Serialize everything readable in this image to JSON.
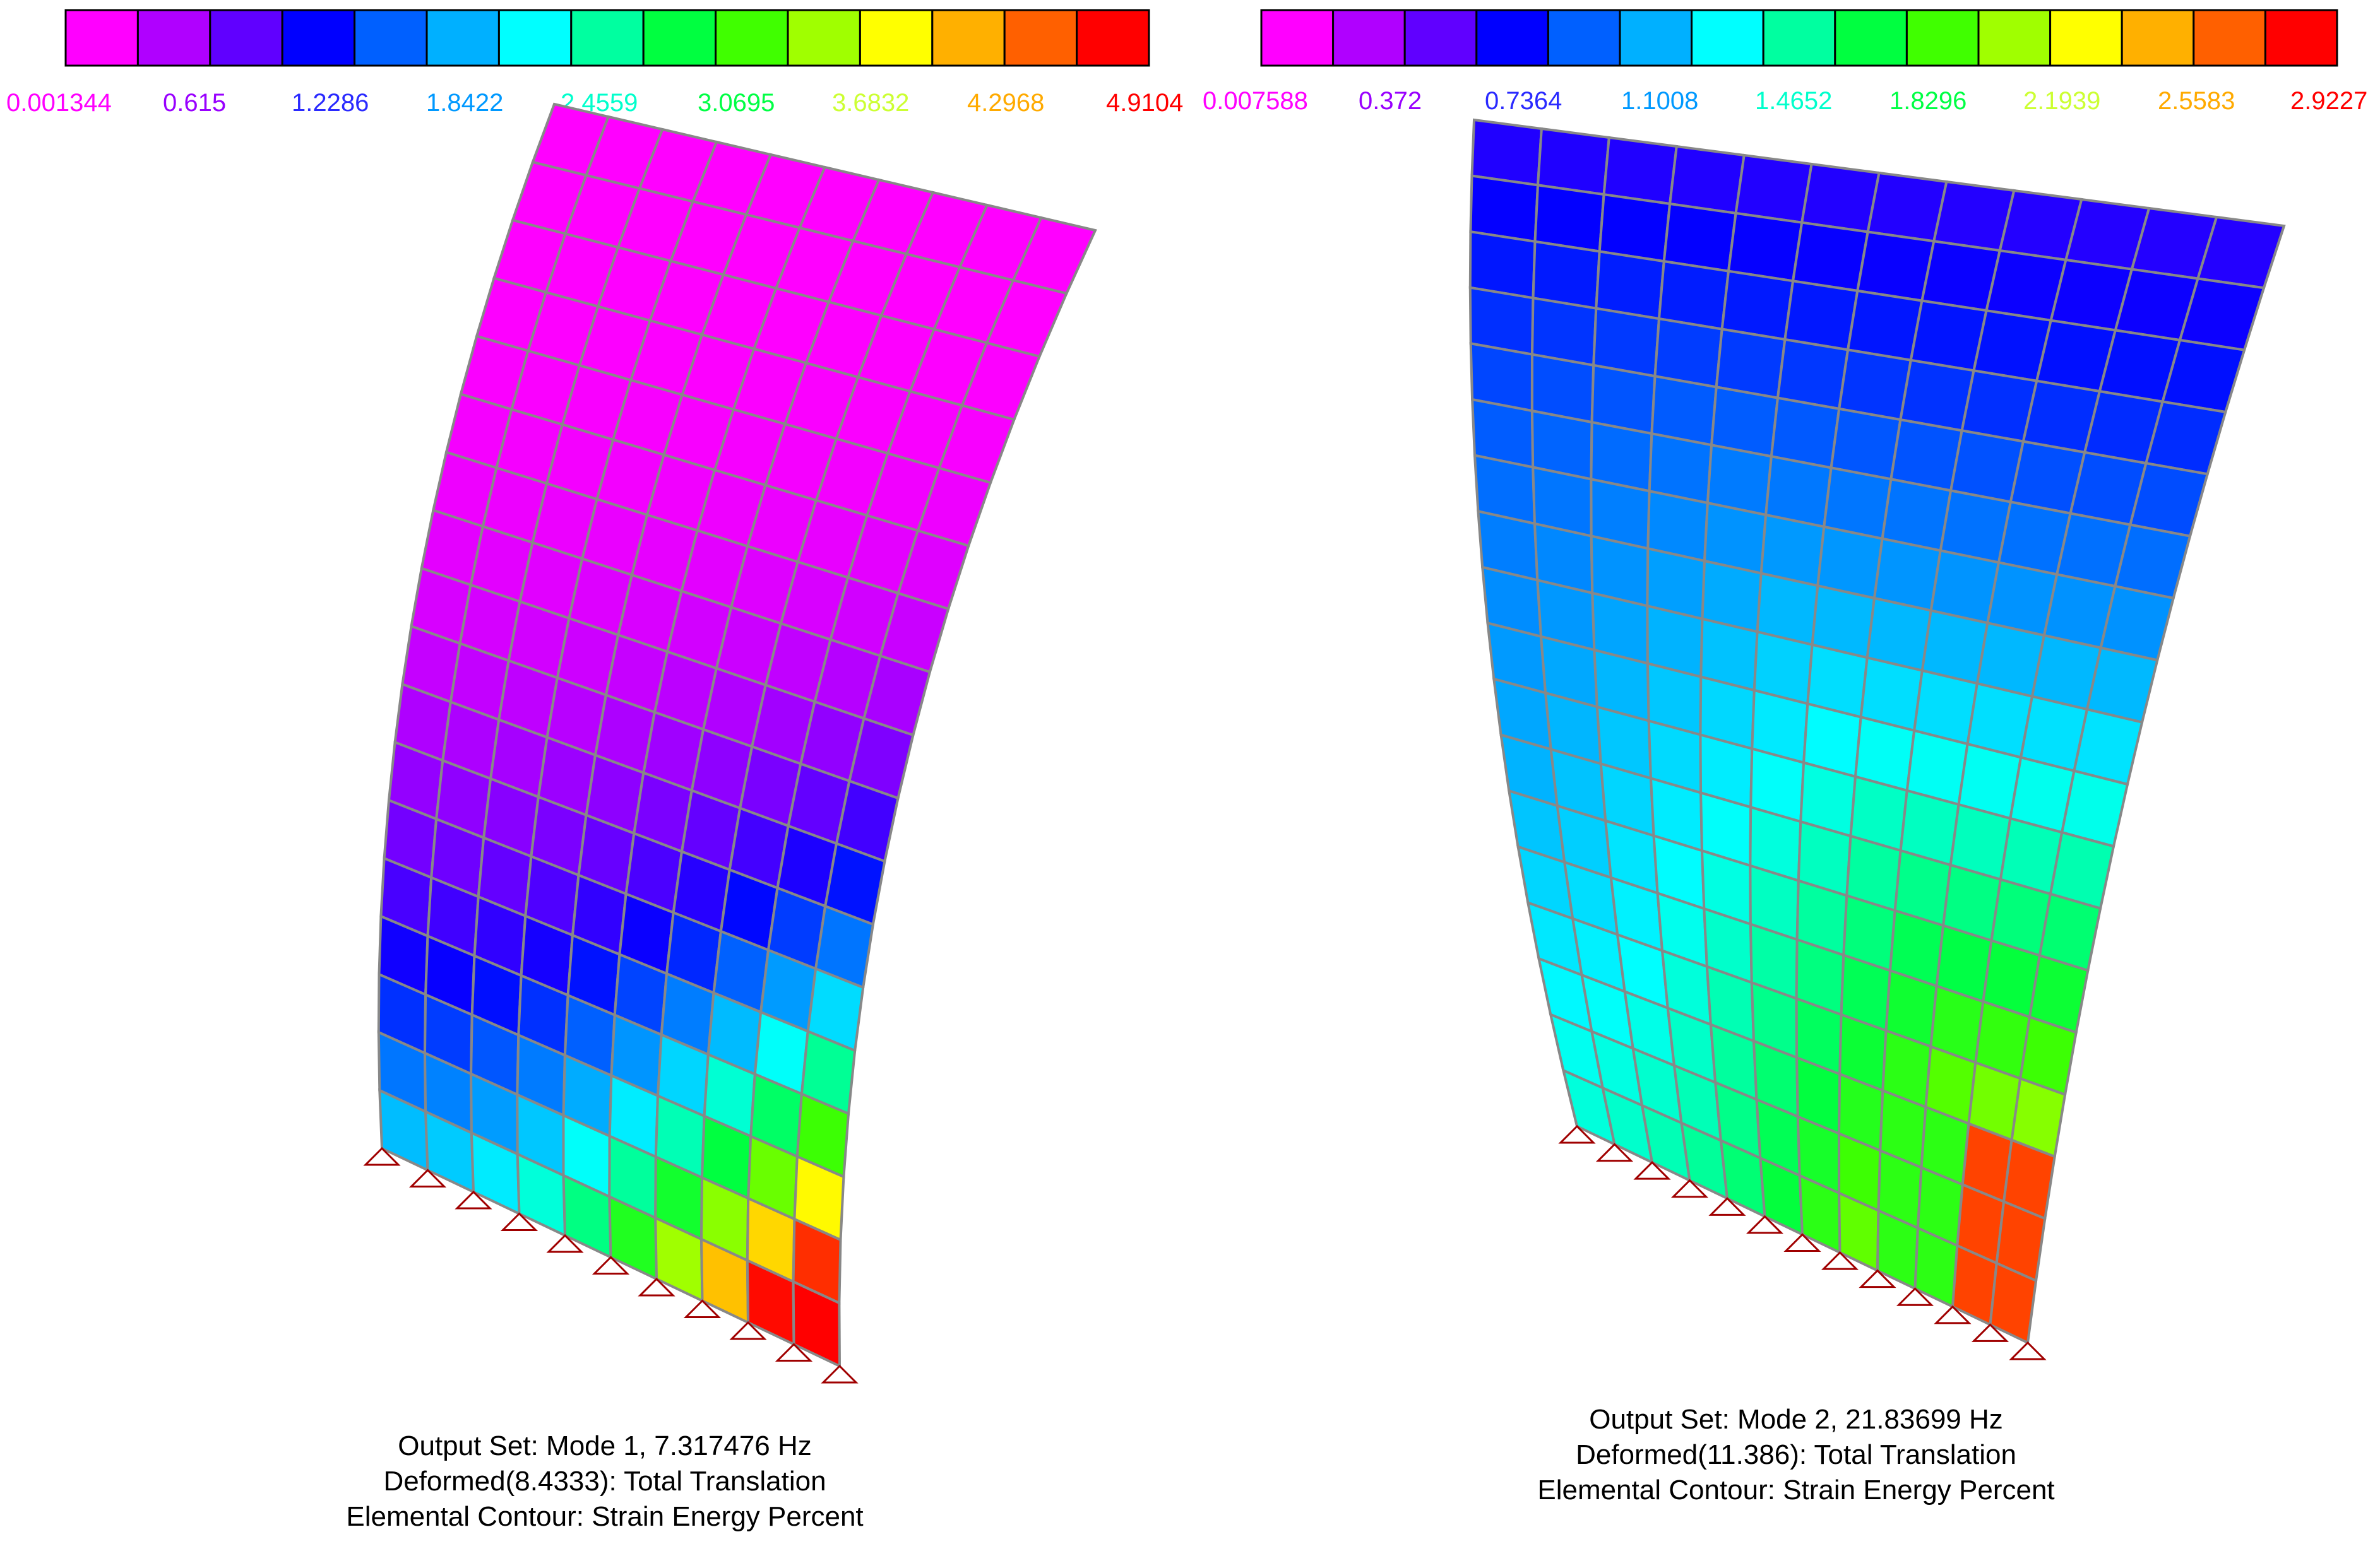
{
  "palette": [
    "#ff00ff",
    "#b000ff",
    "#6000ff",
    "#0000ff",
    "#0060ff",
    "#00b0ff",
    "#00ffff",
    "#00ffa0",
    "#00ff40",
    "#40ff00",
    "#a0ff00",
    "#ffff00",
    "#ffb000",
    "#ff6000",
    "#ff0000"
  ],
  "label_colors": [
    "#ff00ff",
    "#9900ff",
    "#2a2aff",
    "#0099ff",
    "#00ffcc",
    "#00ff44",
    "#ccff33",
    "#ffaa00",
    "#ff0000"
  ],
  "panels": [
    {
      "legend_labels": [
        "0.001344",
        "0.615",
        "1.2286",
        "1.8422",
        "2.4559",
        "3.0695",
        "3.6832",
        "4.2968",
        "4.9104"
      ],
      "caption": [
        "Output Set: Mode 1, 7.317476 Hz",
        "Deformed(8.4333): Total Translation",
        "Elemental Contour: Strain Energy Percent"
      ],
      "mesh": {
        "rows": 18,
        "cols": 10,
        "hot_corner": "bottom-right"
      }
    },
    {
      "legend_labels": [
        "0.007588",
        "0.372",
        "0.7364",
        "1.1008",
        "1.4652",
        "1.8296",
        "2.1939",
        "2.5583",
        "2.9227"
      ],
      "caption": [
        "Output Set: Mode 2, 21.83699 Hz",
        "Deformed(11.386): Total Translation",
        "Elemental Contour: Strain Energy Percent"
      ],
      "mesh": {
        "rows": 18,
        "cols": 12,
        "hot_corner": "bottom-right"
      }
    }
  ],
  "colors": {
    "mesh_line": "#888888",
    "support": "#a00000"
  }
}
